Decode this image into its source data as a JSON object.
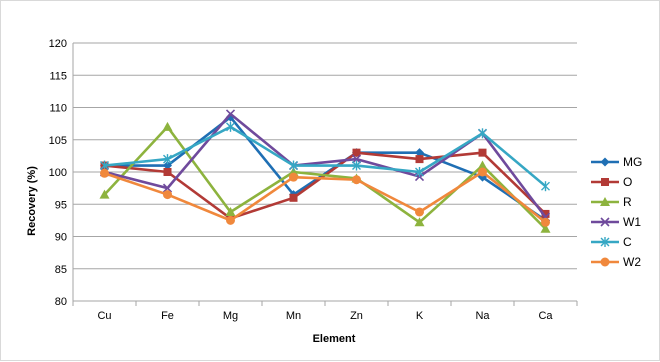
{
  "chart_data": {
    "type": "line",
    "title": "",
    "xlabel": "Element",
    "ylabel": "Recovery (%)",
    "ylim": [
      80,
      120
    ],
    "yticks": [
      80,
      85,
      90,
      95,
      100,
      105,
      110,
      115,
      120
    ],
    "grid": true,
    "legend_position": "right",
    "categories": [
      "Cu",
      "Fe",
      "Mg",
      "Mn",
      "Zn",
      "K",
      "Na",
      "Ca"
    ],
    "series": [
      {
        "name": "MG",
        "color": "#1f6fb4",
        "marker": "diamond",
        "values": [
          101.0,
          101.0,
          108.5,
          96.5,
          103.0,
          103.0,
          99.2,
          92.5
        ]
      },
      {
        "name": "O",
        "color": "#b23a36",
        "marker": "square",
        "values": [
          101.0,
          100.0,
          92.8,
          96.0,
          103.0,
          102.0,
          103.0,
          93.5
        ]
      },
      {
        "name": "R",
        "color": "#8db33e",
        "marker": "triangle",
        "values": [
          96.5,
          107.0,
          93.8,
          100.0,
          99.0,
          92.2,
          101.0,
          91.2
        ]
      },
      {
        "name": "W1",
        "color": "#6f4a9c",
        "marker": "x",
        "values": [
          100.0,
          97.5,
          109.0,
          101.0,
          102.0,
          99.3,
          106.0,
          93.0
        ]
      },
      {
        "name": "C",
        "color": "#36a7c4",
        "marker": "star",
        "values": [
          101.0,
          102.0,
          107.0,
          101.0,
          101.0,
          100.0,
          106.0,
          97.8
        ]
      },
      {
        "name": "W2",
        "color": "#f0883c",
        "marker": "circle",
        "values": [
          99.8,
          96.5,
          92.5,
          99.2,
          98.8,
          93.8,
          100.0,
          92.2
        ]
      }
    ]
  }
}
